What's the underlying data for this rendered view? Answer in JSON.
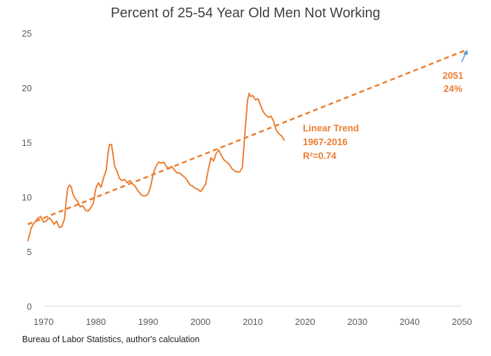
{
  "chart_data": {
    "type": "line",
    "title": "Percent of 25-54 Year Old Men Not Working",
    "xlabel": "",
    "ylabel": "",
    "xlim": [
      1970,
      2051
    ],
    "ylim": [
      0,
      25
    ],
    "x_ticks": [
      "1970",
      "1980",
      "1990",
      "2000",
      "2010",
      "2020",
      "2030",
      "2040",
      "2050"
    ],
    "y_ticks": [
      "0",
      "5",
      "10",
      "15",
      "20",
      "25"
    ],
    "grid": false,
    "legend": "none",
    "colors": {
      "series": "#ED7D31",
      "arrow": "#5B9BD5",
      "text": "#404040"
    },
    "series": [
      {
        "style": "solid",
        "x": [
          1967,
          1967.3,
          1967.6,
          1968,
          1968.5,
          1969,
          1969.5,
          1970,
          1970.5,
          1971,
          1971.5,
          1972,
          1972.5,
          1973,
          1973.5,
          1974,
          1974.3,
          1974.6,
          1975,
          1975.3,
          1975.6,
          1976,
          1976.5,
          1977,
          1977.5,
          1978,
          1978.5,
          1979,
          1979.5,
          1980,
          1980.5,
          1981,
          1981.5,
          1982,
          1982.3,
          1982.6,
          1983,
          1983.3,
          1983.6,
          1984,
          1984.5,
          1985,
          1985.5,
          1986,
          1986.5,
          1987,
          1987.5,
          1988,
          1988.5,
          1989,
          1989.5,
          1990,
          1990.5,
          1991,
          1991.5,
          1992,
          1992.5,
          1993,
          1993.5,
          1994,
          1994.5,
          1995,
          1995.5,
          1996,
          1996.5,
          1997,
          1997.5,
          1998,
          1998.5,
          1999,
          1999.5,
          2000,
          2000.5,
          2001,
          2001.5,
          2002,
          2002.5,
          2003,
          2003.5,
          2004,
          2004.5,
          2005,
          2005.5,
          2006,
          2006.5,
          2007,
          2007.5,
          2008,
          2008.3,
          2008.6,
          2009,
          2009.3,
          2009.6,
          2010,
          2010.5,
          2011,
          2011.5,
          2012,
          2012.5,
          2013,
          2013.5,
          2014,
          2014.5,
          2015,
          2015.5,
          2016
        ],
        "y": [
          6.0,
          6.5,
          7.1,
          7.5,
          7.8,
          8.1,
          8.2,
          7.7,
          7.8,
          8.1,
          7.9,
          7.5,
          7.8,
          7.2,
          7.3,
          8.0,
          9.5,
          10.8,
          11.1,
          10.9,
          10.3,
          9.9,
          9.6,
          9.1,
          9.2,
          8.8,
          8.7,
          9.0,
          9.4,
          10.8,
          11.3,
          10.9,
          11.8,
          12.5,
          13.9,
          14.8,
          14.8,
          13.8,
          12.8,
          12.4,
          11.7,
          11.5,
          11.6,
          11.3,
          11.5,
          11.2,
          11.0,
          10.6,
          10.3,
          10.1,
          10.1,
          10.3,
          11.0,
          12.2,
          12.8,
          13.2,
          13.1,
          13.2,
          12.8,
          12.6,
          12.8,
          12.5,
          12.2,
          12.2,
          12.0,
          11.8,
          11.5,
          11.1,
          11.0,
          10.8,
          10.7,
          10.5,
          10.8,
          11.2,
          12.5,
          13.6,
          13.3,
          14.0,
          14.3,
          13.8,
          13.4,
          13.2,
          13.0,
          12.6,
          12.4,
          12.3,
          12.3,
          12.7,
          14.5,
          16.5,
          18.8,
          19.5,
          19.2,
          19.3,
          18.9,
          19.0,
          18.4,
          17.8,
          17.5,
          17.3,
          17.4,
          16.9,
          16.1,
          15.8,
          15.6,
          15.2
        ]
      },
      {
        "style": "dashed",
        "name": "Linear Trend 1967-2016",
        "x": [
          1967,
          2051
        ],
        "y": [
          7.5,
          23.5
        ]
      }
    ],
    "annotations": [
      {
        "lines": [
          "Linear Trend",
          "1967-2016",
          "R²=0.74"
        ]
      },
      {
        "lines": [
          "2051",
          "24%"
        ]
      }
    ]
  },
  "source_note": "Bureau of Labor Statistics, author's calculation"
}
